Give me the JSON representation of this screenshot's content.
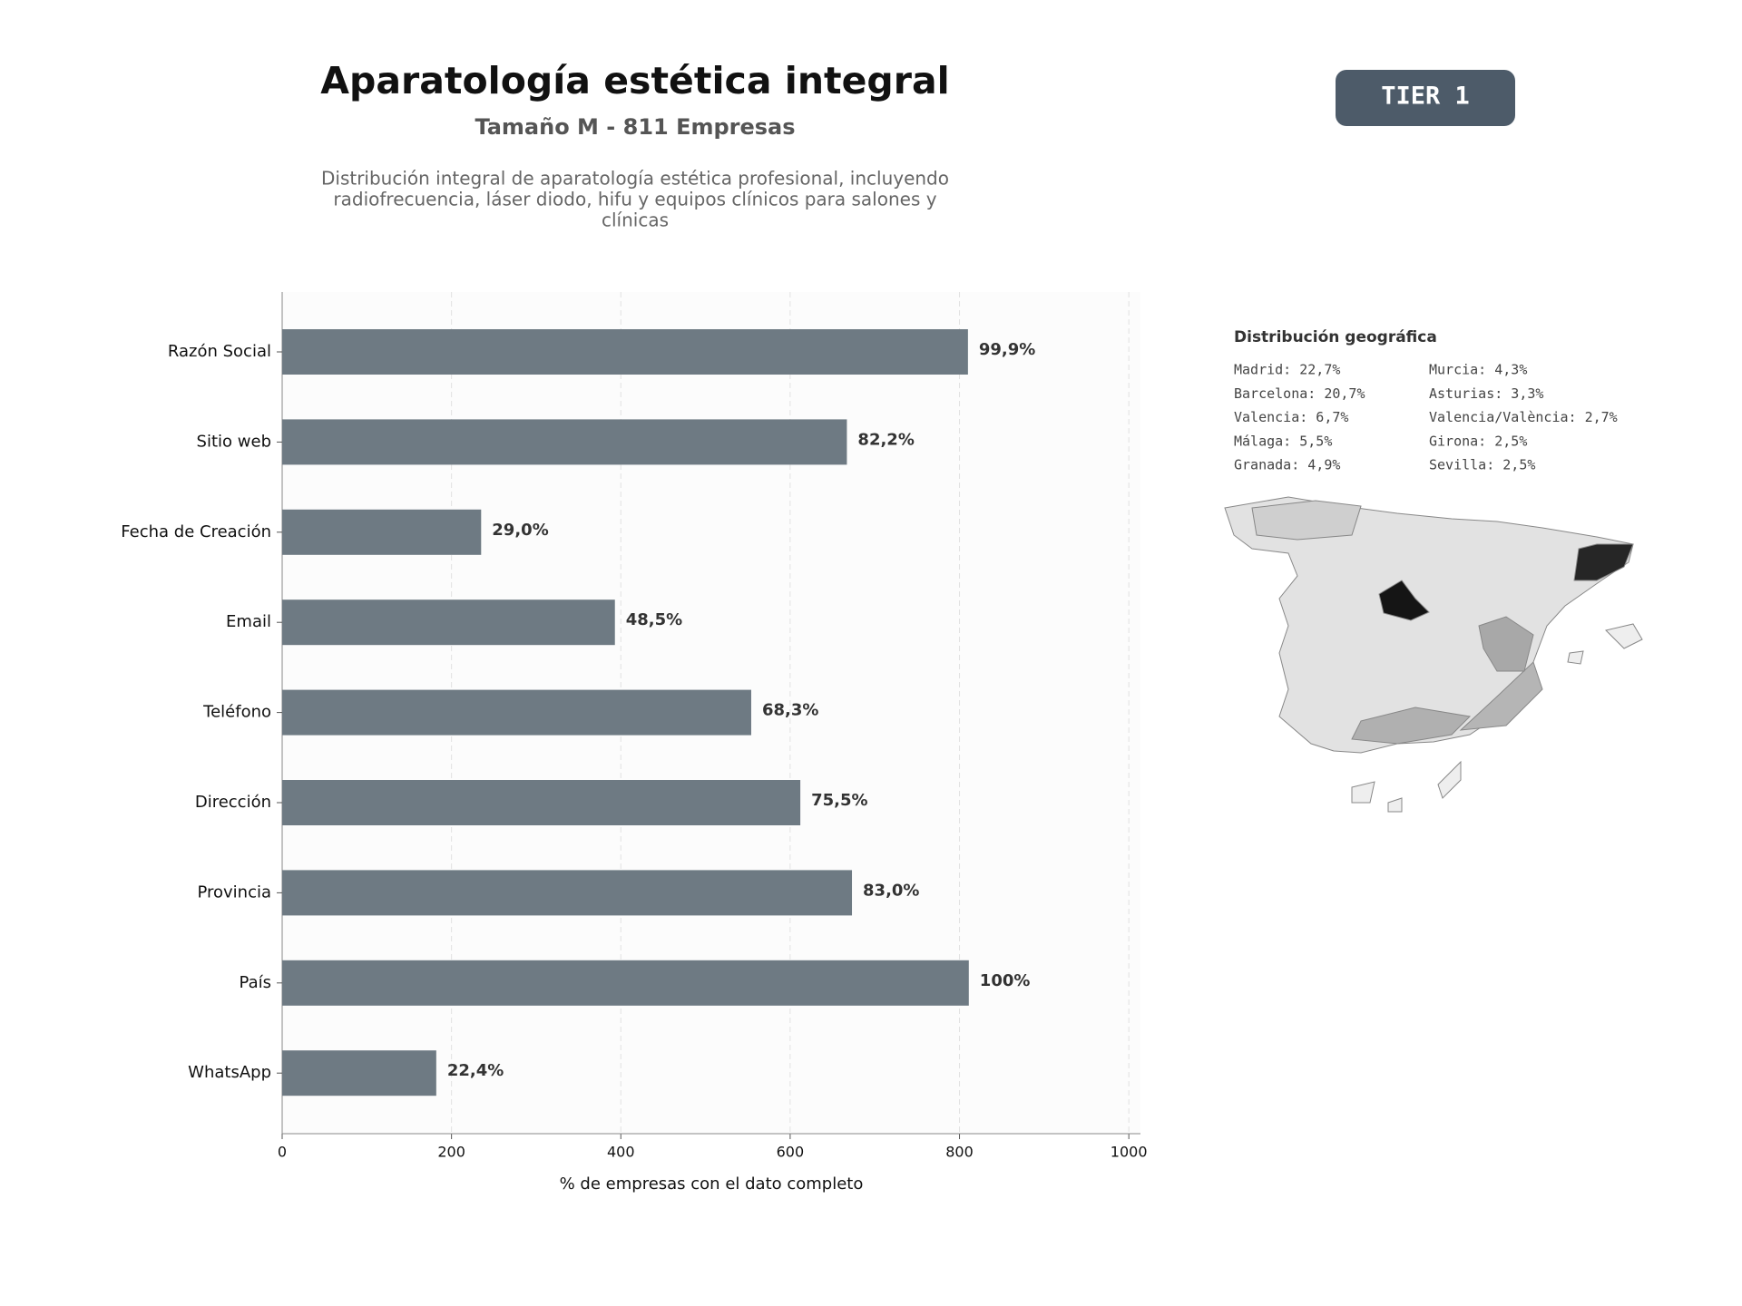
{
  "chart_data": {
    "type": "bar",
    "orientation": "horizontal",
    "title": "Aparatología estética integral",
    "subtitle": "Tamaño M - 811 Empresas",
    "description": [
      "Distribución integral de aparatología estética profesional, incluyendo",
      "radiofrecuencia, láser diodo, hifu y equipos clínicos para salones y",
      "clínicas"
    ],
    "categories": [
      "Razón Social",
      "Sitio web",
      "Fecha de Creación",
      "Email",
      "Teléfono",
      "Dirección",
      "Provincia",
      "País",
      "WhatsApp"
    ],
    "values": [
      810,
      667,
      235,
      393,
      554,
      612,
      673,
      811,
      182
    ],
    "value_labels": [
      "99,9%",
      "82,2%",
      "29,0%",
      "48,5%",
      "68,3%",
      "75,5%",
      "83,0%",
      "100%",
      "22,4%"
    ],
    "color": "#6e7a83",
    "xlim": [
      0,
      1013.75
    ],
    "xticks": [
      0,
      200,
      400,
      600,
      800,
      1000
    ],
    "xlabel": "% de empresas con el dato completo",
    "grid": true
  },
  "badge": "TIER 1",
  "geo": {
    "title": "Distribución geográfica",
    "columns": [
      [
        "Madrid: 22,7%",
        "Barcelona: 20,7%",
        "Valencia: 6,7%",
        "Málaga: 5,5%",
        "Granada: 4,9%"
      ],
      [
        "Murcia: 4,3%",
        "Asturias: 3,3%",
        "Valencia/València: 2,7%",
        "Girona: 2,5%",
        "Sevilla: 2,5%"
      ]
    ]
  }
}
